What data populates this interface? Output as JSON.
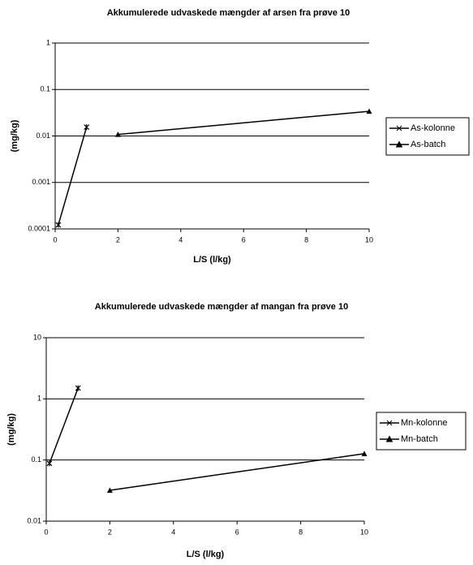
{
  "chart_data": [
    {
      "type": "line",
      "title": "Akkumulerede udvaskede mængder af arsen fra prøve 10",
      "x_label": "L/S (l/kg)",
      "y_label": "(mg/kg)",
      "log_y": true,
      "grid": true,
      "legend": "right",
      "xlim": [
        0,
        10
      ],
      "xticks": [
        0,
        2,
        4,
        6,
        8,
        10
      ],
      "ylim": [
        0.0001,
        1
      ],
      "yticks": [
        0.0001,
        0.001,
        0.01,
        0.1,
        1
      ],
      "series": [
        {
          "name": "As-kolonne",
          "color": "#000000",
          "marker": "x",
          "x": [
            0.1,
            1
          ],
          "values": [
            0.000122,
            0.0155
          ]
        },
        {
          "name": "As-batch",
          "color": "#000000",
          "marker": "triangle",
          "x": [
            2,
            10
          ],
          "values": [
            0.0108,
            0.034
          ]
        }
      ]
    },
    {
      "type": "line",
      "title": "Akkumulerede udvaskede mængder af mangan fra prøve 10",
      "x_label": "L/S (l/kg)",
      "y_label": "(mg/kg)",
      "log_y": true,
      "grid": true,
      "legend": "right",
      "xlim": [
        0,
        10
      ],
      "xticks": [
        0,
        2,
        4,
        6,
        8,
        10
      ],
      "ylim": [
        0.01,
        10
      ],
      "yticks": [
        0.01,
        0.1,
        1,
        10
      ],
      "series": [
        {
          "name": "Mn-kolonne",
          "color": "#000000",
          "marker": "x",
          "x": [
            0.1,
            1
          ],
          "values": [
            0.088,
            1.5
          ]
        },
        {
          "name": "Mn-batch",
          "color": "#000000",
          "marker": "triangle",
          "x": [
            2,
            10
          ],
          "values": [
            0.032,
            0.127
          ]
        }
      ]
    }
  ]
}
